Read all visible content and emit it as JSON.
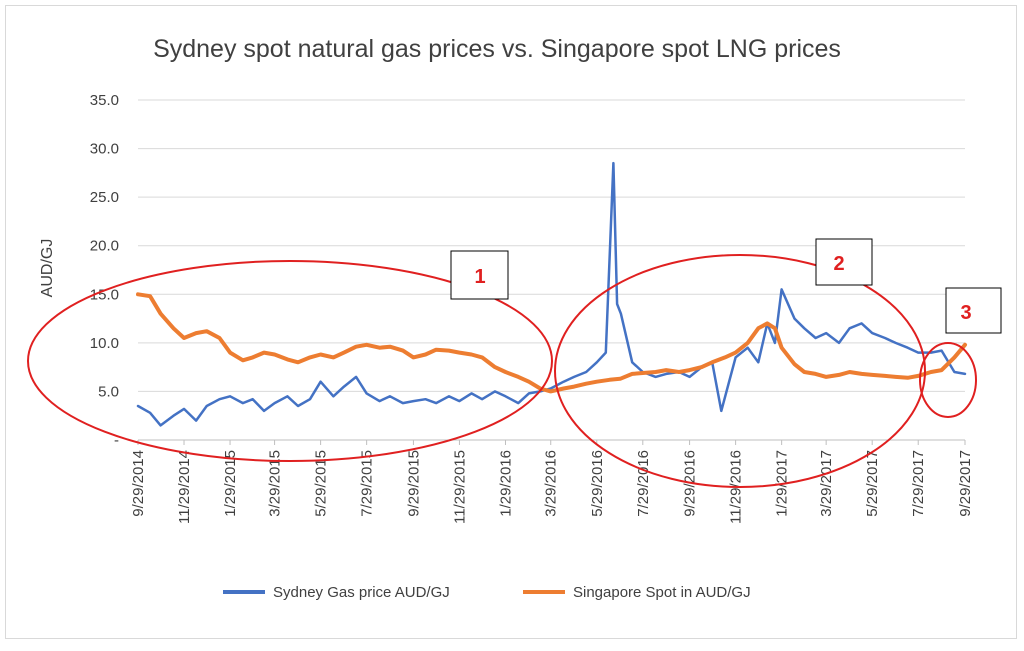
{
  "chart_data": {
    "type": "line",
    "title": "Sydney spot natural gas prices vs. Singapore spot LNG prices",
    "ylabel": "AUD/GJ",
    "xlabel": "",
    "ylim": [
      0,
      35
    ],
    "y_ticks": [
      "-",
      "5.0",
      "10.0",
      "15.0",
      "20.0",
      "25.0",
      "30.0",
      "35.0"
    ],
    "x_ticks": [
      "9/29/2014",
      "11/29/2014",
      "1/29/2015",
      "3/29/2015",
      "5/29/2015",
      "7/29/2015",
      "9/29/2015",
      "11/29/2015",
      "1/29/2016",
      "3/29/2016",
      "5/29/2016",
      "7/29/2016",
      "9/29/2016",
      "11/29/2016",
      "1/29/2017",
      "3/29/2017",
      "5/29/2017",
      "7/29/2017",
      "9/29/2017"
    ],
    "grid": true,
    "legend_position": "bottom",
    "series": [
      {
        "name": "Sydney Gas price AUD/GJ",
        "color": "#4472c4",
        "points": [
          [
            "9/29/2014",
            3.5
          ],
          [
            "10/15/2014",
            2.8
          ],
          [
            "10/29/2014",
            1.5
          ],
          [
            "11/15/2014",
            2.5
          ],
          [
            "11/29/2014",
            3.2
          ],
          [
            "12/15/2014",
            2.0
          ],
          [
            "12/29/2014",
            3.5
          ],
          [
            "1/15/2015",
            4.2
          ],
          [
            "1/29/2015",
            4.5
          ],
          [
            "2/15/2015",
            3.8
          ],
          [
            "2/28/2015",
            4.2
          ],
          [
            "3/15/2015",
            3.0
          ],
          [
            "3/29/2015",
            3.8
          ],
          [
            "4/15/2015",
            4.5
          ],
          [
            "4/29/2015",
            3.5
          ],
          [
            "5/15/2015",
            4.2
          ],
          [
            "5/29/2015",
            6.0
          ],
          [
            "6/15/2015",
            4.5
          ],
          [
            "6/29/2015",
            5.5
          ],
          [
            "7/15/2015",
            6.5
          ],
          [
            "7/29/2015",
            4.8
          ],
          [
            "8/15/2015",
            4.0
          ],
          [
            "8/29/2015",
            4.5
          ],
          [
            "9/15/2015",
            3.8
          ],
          [
            "9/29/2015",
            4.0
          ],
          [
            "10/15/2015",
            4.2
          ],
          [
            "10/29/2015",
            3.8
          ],
          [
            "11/15/2015",
            4.5
          ],
          [
            "11/29/2015",
            4.0
          ],
          [
            "12/15/2015",
            4.8
          ],
          [
            "12/29/2015",
            4.2
          ],
          [
            "1/15/2016",
            5.0
          ],
          [
            "1/29/2016",
            4.5
          ],
          [
            "2/15/2016",
            3.8
          ],
          [
            "2/29/2016",
            4.8
          ],
          [
            "3/15/2016",
            5.0
          ],
          [
            "3/29/2016",
            5.3
          ],
          [
            "4/15/2016",
            6.0
          ],
          [
            "4/29/2016",
            6.5
          ],
          [
            "5/15/2016",
            7.0
          ],
          [
            "5/29/2016",
            8.0
          ],
          [
            "6/10/2016",
            9.0
          ],
          [
            "6/20/2016",
            28.5
          ],
          [
            "6/25/2016",
            14.0
          ],
          [
            "6/30/2016",
            13.0
          ],
          [
            "7/15/2016",
            8.0
          ],
          [
            "7/29/2016",
            7.0
          ],
          [
            "8/15/2016",
            6.5
          ],
          [
            "8/29/2016",
            6.8
          ],
          [
            "9/15/2016",
            7.0
          ],
          [
            "9/29/2016",
            6.5
          ],
          [
            "10/15/2016",
            7.5
          ],
          [
            "10/29/2016",
            8.0
          ],
          [
            "11/10/2016",
            3.0
          ],
          [
            "11/29/2016",
            8.5
          ],
          [
            "12/15/2016",
            9.5
          ],
          [
            "12/29/2016",
            8.0
          ],
          [
            "1/10/2017",
            12.0
          ],
          [
            "1/20/2017",
            10.0
          ],
          [
            "1/29/2017",
            15.5
          ],
          [
            "2/15/2017",
            12.5
          ],
          [
            "2/28/2017",
            11.5
          ],
          [
            "3/15/2017",
            10.5
          ],
          [
            "3/29/2017",
            11.0
          ],
          [
            "4/15/2017",
            10.0
          ],
          [
            "4/29/2017",
            11.5
          ],
          [
            "5/15/2017",
            12.0
          ],
          [
            "5/29/2017",
            11.0
          ],
          [
            "6/15/2017",
            10.5
          ],
          [
            "6/29/2017",
            10.0
          ],
          [
            "7/15/2017",
            9.5
          ],
          [
            "7/29/2017",
            9.0
          ],
          [
            "8/15/2017",
            9.0
          ],
          [
            "8/29/2017",
            9.2
          ],
          [
            "9/15/2017",
            7.0
          ],
          [
            "9/29/2017",
            6.8
          ]
        ]
      },
      {
        "name": "Singapore Spot in AUD/GJ",
        "color": "#ed7d31",
        "points": [
          [
            "9/29/2014",
            15.0
          ],
          [
            "10/15/2014",
            14.8
          ],
          [
            "10/29/2014",
            13.0
          ],
          [
            "11/15/2014",
            11.5
          ],
          [
            "11/29/2014",
            10.5
          ],
          [
            "12/15/2014",
            11.0
          ],
          [
            "12/29/2014",
            11.2
          ],
          [
            "1/15/2015",
            10.5
          ],
          [
            "1/29/2015",
            9.0
          ],
          [
            "2/15/2015",
            8.2
          ],
          [
            "2/28/2015",
            8.5
          ],
          [
            "3/15/2015",
            9.0
          ],
          [
            "3/29/2015",
            8.8
          ],
          [
            "4/15/2015",
            8.3
          ],
          [
            "4/29/2015",
            8.0
          ],
          [
            "5/15/2015",
            8.5
          ],
          [
            "5/29/2015",
            8.8
          ],
          [
            "6/15/2015",
            8.5
          ],
          [
            "6/29/2015",
            9.0
          ],
          [
            "7/15/2015",
            9.6
          ],
          [
            "7/29/2015",
            9.8
          ],
          [
            "8/15/2015",
            9.5
          ],
          [
            "8/29/2015",
            9.6
          ],
          [
            "9/15/2015",
            9.2
          ],
          [
            "9/29/2015",
            8.5
          ],
          [
            "10/15/2015",
            8.8
          ],
          [
            "10/29/2015",
            9.3
          ],
          [
            "11/15/2015",
            9.2
          ],
          [
            "11/29/2015",
            9.0
          ],
          [
            "12/15/2015",
            8.8
          ],
          [
            "12/29/2015",
            8.5
          ],
          [
            "1/15/2016",
            7.5
          ],
          [
            "1/29/2016",
            7.0
          ],
          [
            "2/15/2016",
            6.5
          ],
          [
            "2/29/2016",
            6.0
          ],
          [
            "3/15/2016",
            5.3
          ],
          [
            "3/29/2016",
            5.0
          ],
          [
            "4/15/2016",
            5.3
          ],
          [
            "4/29/2016",
            5.5
          ],
          [
            "5/15/2016",
            5.8
          ],
          [
            "5/29/2016",
            6.0
          ],
          [
            "6/15/2016",
            6.2
          ],
          [
            "6/29/2016",
            6.3
          ],
          [
            "7/15/2016",
            6.8
          ],
          [
            "7/29/2016",
            6.9
          ],
          [
            "8/15/2016",
            7.0
          ],
          [
            "8/29/2016",
            7.2
          ],
          [
            "9/15/2016",
            7.0
          ],
          [
            "9/29/2016",
            7.2
          ],
          [
            "10/15/2016",
            7.5
          ],
          [
            "10/29/2016",
            8.0
          ],
          [
            "11/15/2016",
            8.5
          ],
          [
            "11/29/2016",
            9.0
          ],
          [
            "12/15/2016",
            10.0
          ],
          [
            "12/29/2016",
            11.5
          ],
          [
            "1/10/2017",
            12.0
          ],
          [
            "1/20/2017",
            11.5
          ],
          [
            "1/29/2017",
            9.5
          ],
          [
            "2/15/2017",
            7.8
          ],
          [
            "2/28/2017",
            7.0
          ],
          [
            "3/15/2017",
            6.8
          ],
          [
            "3/29/2017",
            6.5
          ],
          [
            "4/15/2017",
            6.7
          ],
          [
            "4/29/2017",
            7.0
          ],
          [
            "5/15/2017",
            6.8
          ],
          [
            "5/29/2017",
            6.7
          ],
          [
            "6/15/2017",
            6.6
          ],
          [
            "6/29/2017",
            6.5
          ],
          [
            "7/15/2017",
            6.4
          ],
          [
            "7/29/2017",
            6.6
          ],
          [
            "8/15/2017",
            7.0
          ],
          [
            "8/29/2017",
            7.2
          ],
          [
            "9/15/2017",
            8.5
          ],
          [
            "9/29/2017",
            9.8
          ]
        ]
      }
    ],
    "annotations": [
      {
        "label": "1",
        "color": "#e02020"
      },
      {
        "label": "2",
        "color": "#e02020"
      },
      {
        "label": "3",
        "color": "#e02020"
      }
    ]
  }
}
